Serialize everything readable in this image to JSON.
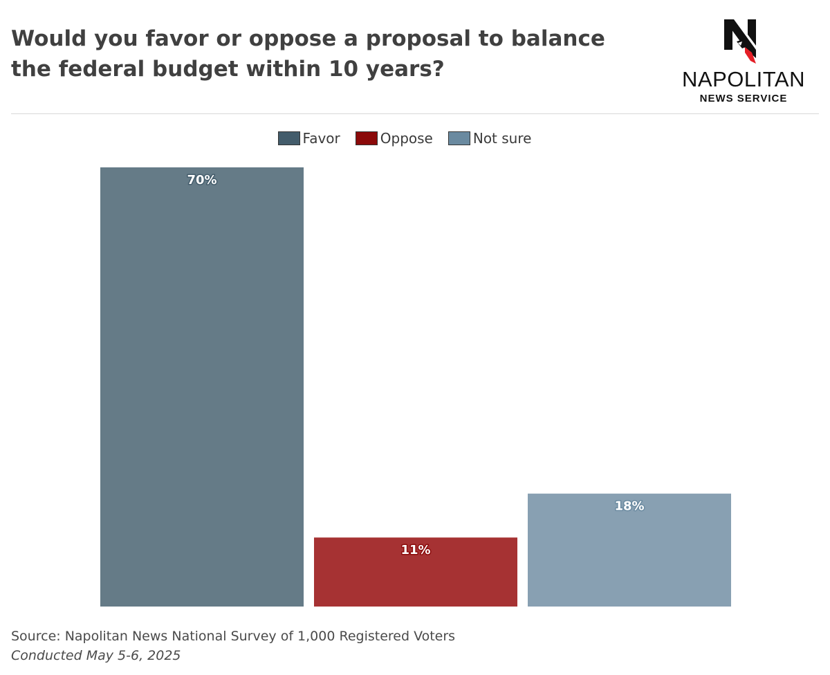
{
  "title": "Would you favor or oppose a proposal to balance the federal budget within 10 years?",
  "logo": {
    "brand": "NAPOLITAN",
    "sub": "NEWS SERVICE",
    "icon": "napolitan-n-eagle-logo"
  },
  "colors": {
    "favor": "#657b87",
    "oppose": "#a63233",
    "not_sure": "#88a0b2",
    "favor_legend": "#435c6b",
    "oppose_legend": "#8b0a0a",
    "not_sure_legend": "#6a8aa0"
  },
  "legend": [
    {
      "label": "Favor"
    },
    {
      "label": "Oppose"
    },
    {
      "label": "Not sure"
    }
  ],
  "chart_data": {
    "type": "bar",
    "categories": [
      "Favor",
      "Oppose",
      "Not sure"
    ],
    "values": [
      70,
      11,
      18
    ],
    "value_labels": [
      "70%",
      "11%",
      "18%"
    ],
    "title": "Would you favor or oppose a proposal to balance the federal budget within 10 years?",
    "xlabel": "",
    "ylabel": "",
    "ylim": [
      0,
      70
    ],
    "grid": false,
    "legend_position": "top-center"
  },
  "footer": {
    "source": "Source: Napolitan News National Survey of 1,000 Registered Voters",
    "conducted": "Conducted May 5-6, 2025"
  }
}
